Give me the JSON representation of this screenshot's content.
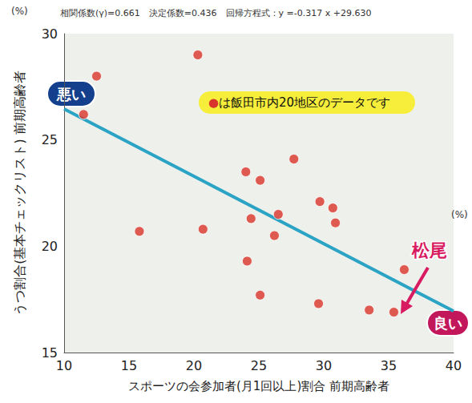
{
  "chart_data": {
    "type": "scatter",
    "title": "相関係数(γ)=0.661　決定係数=0.436　回帰方程式：y =-0.317 x +29.630",
    "x_label": "スポーツの会参加者(月1回以上)割合 前期高齢者",
    "y_label": "うつ割合(基本チェックリスト) 前期高齢者",
    "x_unit": "(%)",
    "y_unit": "(%)",
    "x": [
      12.5,
      11.5,
      20.3,
      15.8,
      20.7,
      24.0,
      25.1,
      27.7,
      24.4,
      26.5,
      24.1,
      26.2,
      25.1,
      29.7,
      30.7,
      30.9,
      29.6,
      33.5,
      35.4,
      36.2
    ],
    "values": [
      28.0,
      26.2,
      29.0,
      20.7,
      20.8,
      23.5,
      23.1,
      24.1,
      21.3,
      21.5,
      19.3,
      20.5,
      17.7,
      22.1,
      21.8,
      21.1,
      17.3,
      17.0,
      16.9,
      18.9
    ],
    "color": "#d9342b",
    "regression": {
      "slope": -0.317,
      "intercept": 29.63,
      "color": "#2ba3c4"
    },
    "annotations": {
      "bad": "悪い",
      "good": "良い",
      "highlight": "松尾",
      "note": "●は飯田市内20地区のデータです"
    },
    "xlim": [
      10,
      40
    ],
    "xticks": [
      10,
      15,
      20,
      25,
      30,
      35,
      40
    ],
    "ylim": [
      15,
      30
    ],
    "yticks": [
      15,
      20,
      25,
      30
    ],
    "grid": false
  }
}
